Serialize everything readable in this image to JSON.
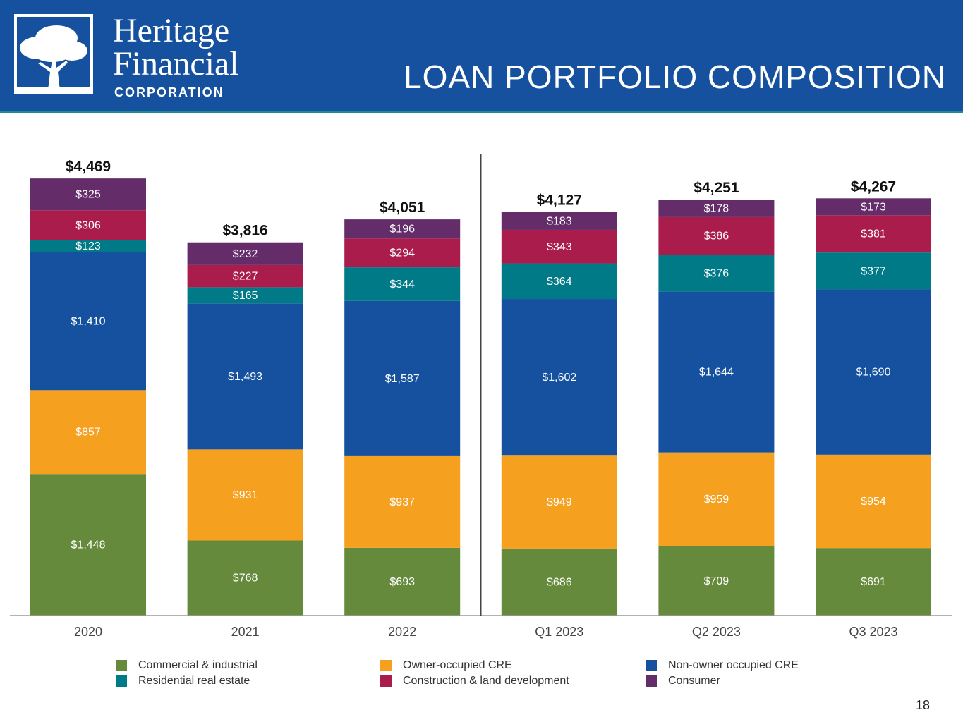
{
  "header": {
    "logo_line1": "Heritage",
    "logo_line2": "Financial",
    "logo_line3": "CORPORATION",
    "title": "LOAN PORTFOLIO COMPOSITION",
    "background_color": "#15519E"
  },
  "page_number": "18",
  "chart_data": {
    "type": "bar",
    "stacked": true,
    "title": "LOAN PORTFOLIO COMPOSITION",
    "categories": [
      "2020",
      "2021",
      "2022",
      "Q1 2023",
      "Q2 2023",
      "Q3 2023"
    ],
    "totals": [
      "$4,469",
      "$3,816",
      "$4,051",
      "$4,127",
      "$4,251",
      "$4,267"
    ],
    "series": [
      {
        "name": "Commercial & industrial",
        "color": "#668A3B",
        "values": [
          1448,
          768,
          693,
          686,
          709,
          691
        ],
        "labels": [
          "$1,448",
          "$768",
          "$693",
          "$686",
          "$709",
          "$691"
        ]
      },
      {
        "name": "Owner-occupied CRE",
        "color": "#F5A01F",
        "values": [
          857,
          931,
          937,
          949,
          959,
          954
        ],
        "labels": [
          "$857",
          "$931",
          "$937",
          "$949",
          "$959",
          "$954"
        ]
      },
      {
        "name": "Non-owner occupied CRE",
        "color": "#15519E",
        "values": [
          1410,
          1493,
          1587,
          1602,
          1644,
          1690
        ],
        "labels": [
          "$1,410",
          "$1,493",
          "$1,587",
          "$1,602",
          "$1,644",
          "$1,690"
        ]
      },
      {
        "name": "Residential real estate",
        "color": "#007A87",
        "values": [
          123,
          165,
          344,
          364,
          376,
          377
        ],
        "labels": [
          "$123",
          "$165",
          "$344",
          "$364",
          "$376",
          "$377"
        ]
      },
      {
        "name": "Construction & land development",
        "color": "#A91C4C",
        "values": [
          306,
          227,
          294,
          343,
          386,
          381
        ],
        "labels": [
          "$306",
          "$227",
          "$294",
          "$343",
          "$386",
          "$381"
        ]
      },
      {
        "name": "Consumer",
        "color": "#652C6A",
        "values": [
          325,
          232,
          196,
          183,
          178,
          173
        ],
        "labels": [
          "$325",
          "$232",
          "$196",
          "$183",
          "$178",
          "$173"
        ]
      }
    ],
    "ylim": [
      0,
      4800
    ],
    "grid": false,
    "divider_after_category": "2022",
    "legend_position": "bottom",
    "xlabel": "",
    "ylabel": ""
  }
}
